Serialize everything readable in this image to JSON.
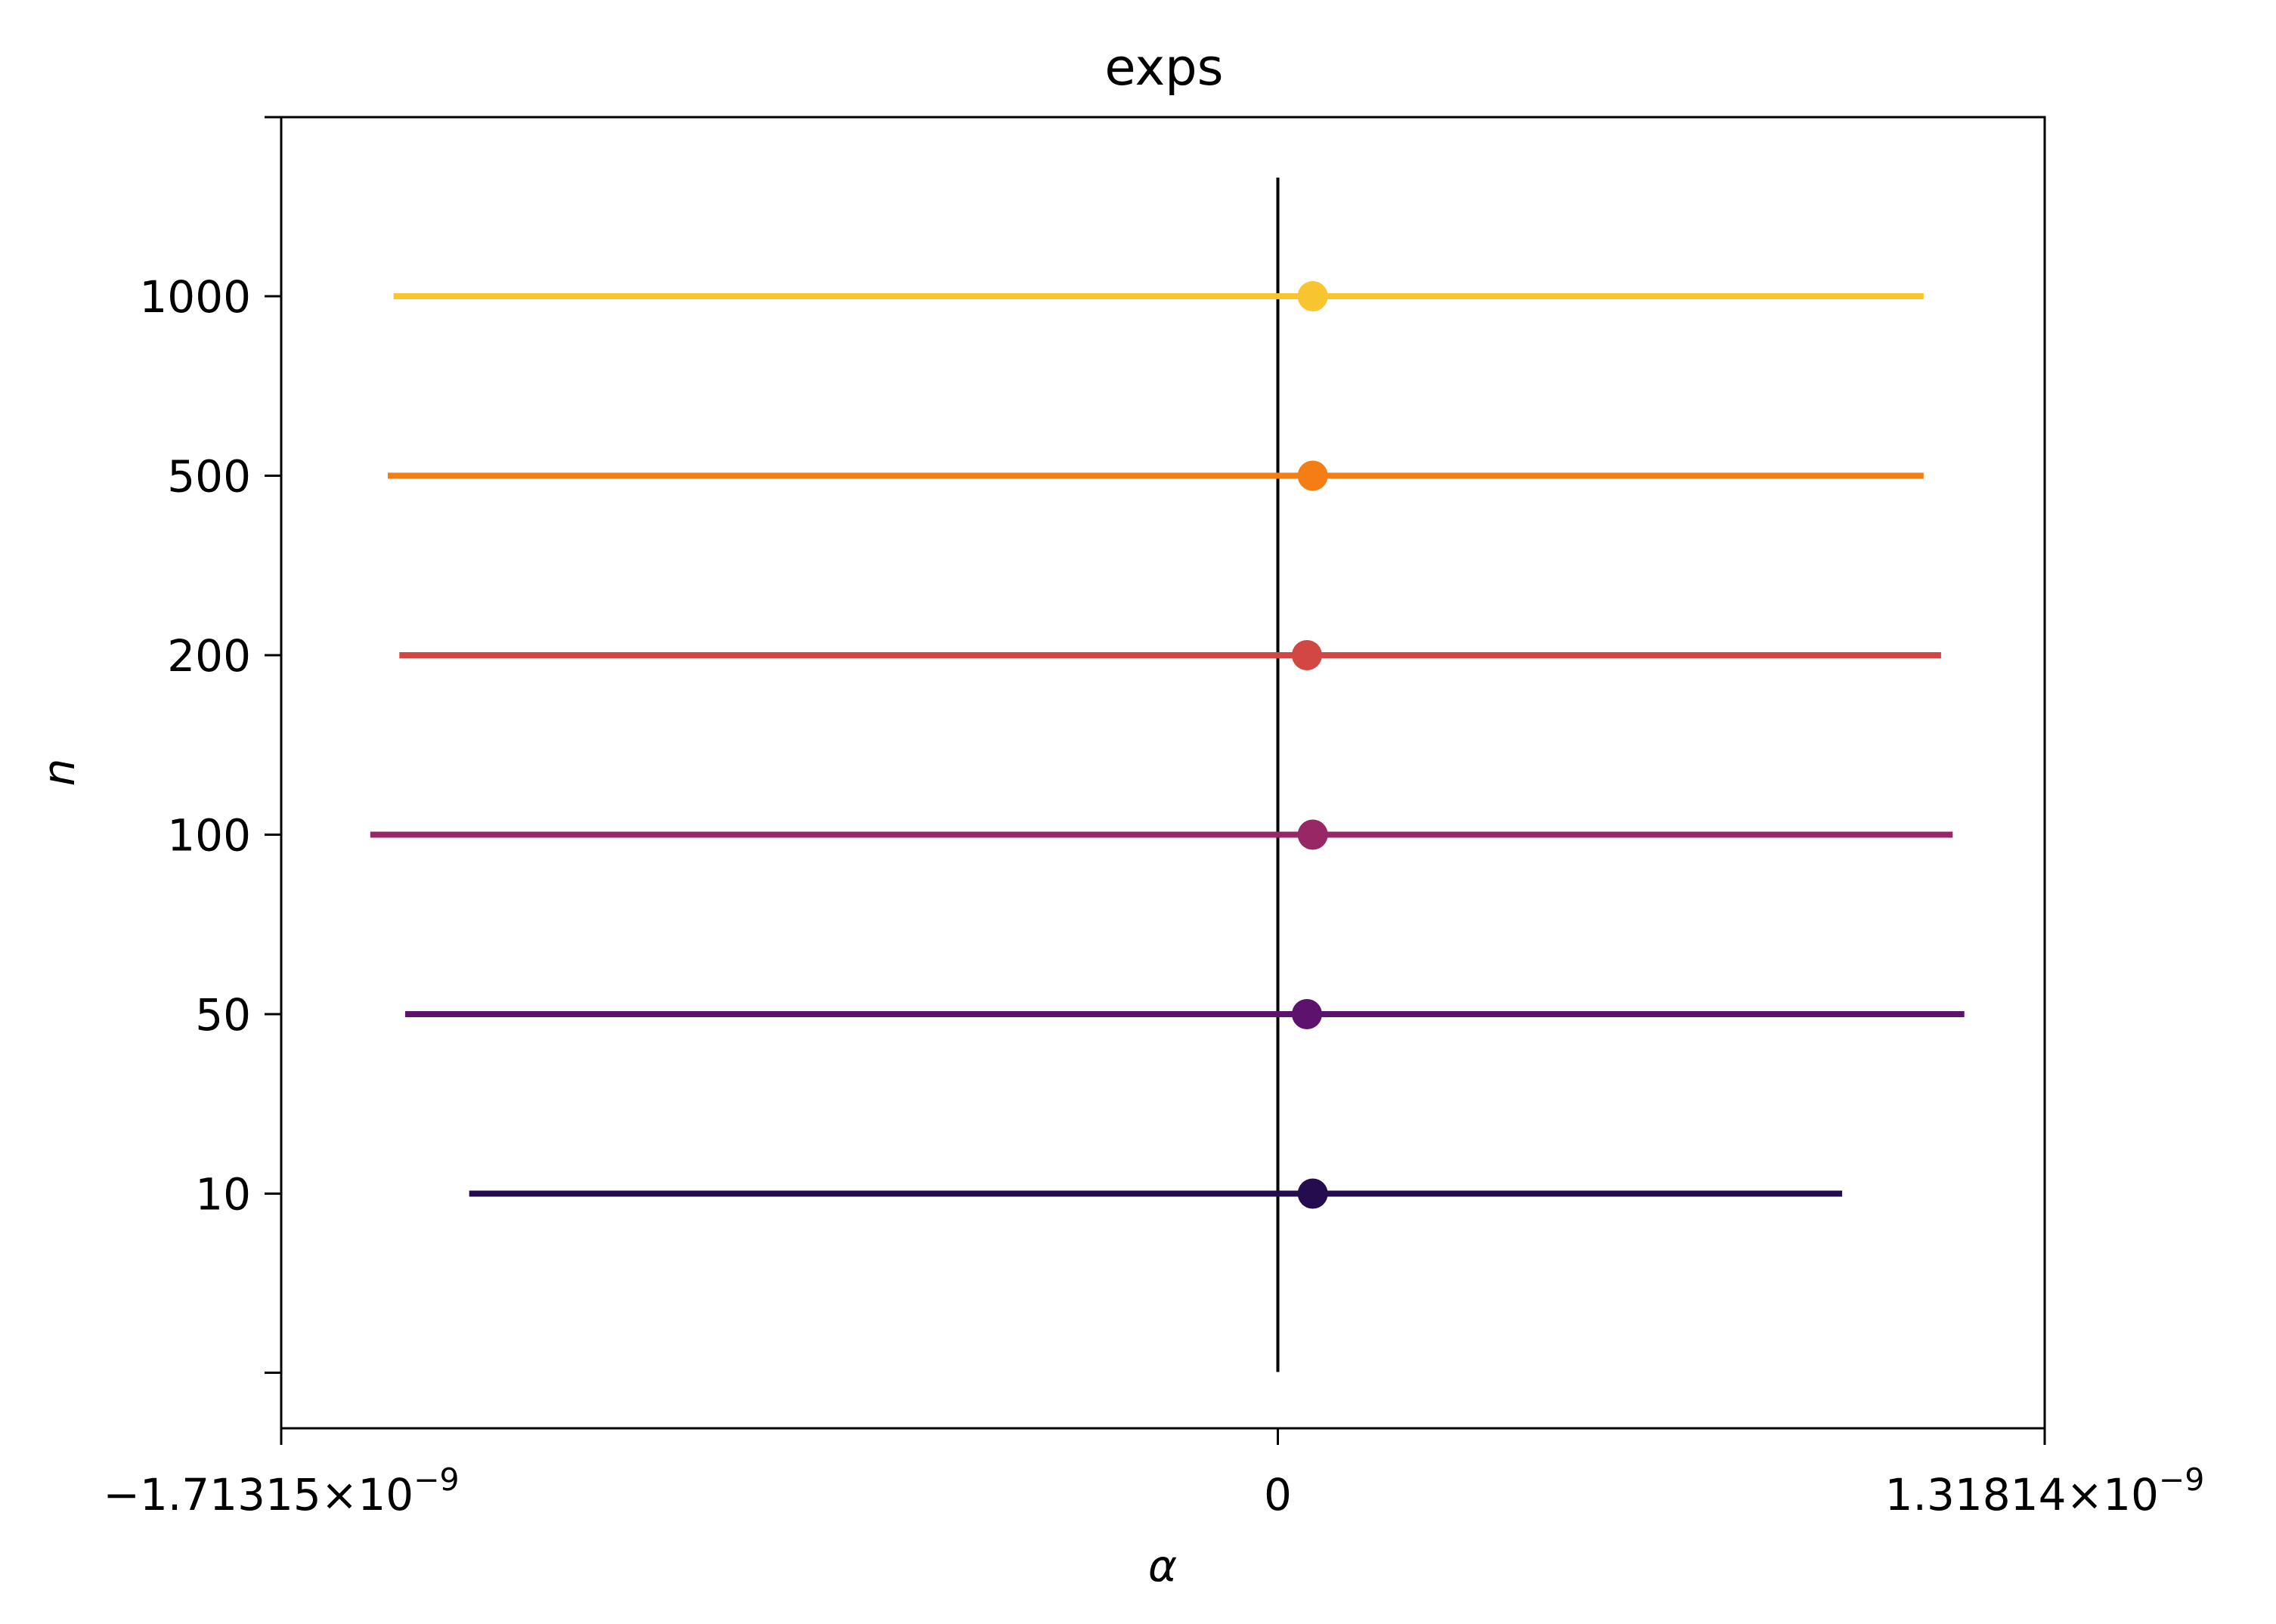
{
  "chart_data": {
    "type": "errorbar",
    "title": "exps",
    "xlabel": "α",
    "ylabel": "n",
    "xlim": [
      -1.71315e-09,
      1.31814e-09
    ],
    "x_ticks": [
      {
        "value": -1.71315e-09,
        "mantissa": "−1.71315",
        "times": "×",
        "base": "10",
        "exponent": "−9"
      },
      {
        "value": 0,
        "label": "0"
      },
      {
        "value": 1.31814e-09,
        "mantissa": "1.31814",
        "times": "×",
        "base": "10",
        "exponent": "−9"
      }
    ],
    "y_tick_labels": [
      "10",
      "50",
      "100",
      "200",
      "500",
      "1000"
    ],
    "reference_line_x": 0,
    "grid": false,
    "series": [
      {
        "n": "10",
        "center": 6e-11,
        "low": -1.39e-09,
        "high": 9.7e-10,
        "color": "#240c4e"
      },
      {
        "n": "50",
        "center": 5e-11,
        "low": -1.5e-09,
        "high": 1.18e-09,
        "color": "#5d126e"
      },
      {
        "n": "100",
        "center": 6e-11,
        "low": -1.56e-09,
        "high": 1.16e-09,
        "color": "#982766"
      },
      {
        "n": "200",
        "center": 5e-11,
        "low": -1.51e-09,
        "high": 1.14e-09,
        "color": "#d24644"
      },
      {
        "n": "500",
        "center": 6e-11,
        "low": -1.53e-09,
        "high": 1.11e-09,
        "color": "#f57d15"
      },
      {
        "n": "1000",
        "center": 6e-11,
        "low": -1.52e-09,
        "high": 1.11e-09,
        "color": "#f8c42f"
      }
    ]
  }
}
